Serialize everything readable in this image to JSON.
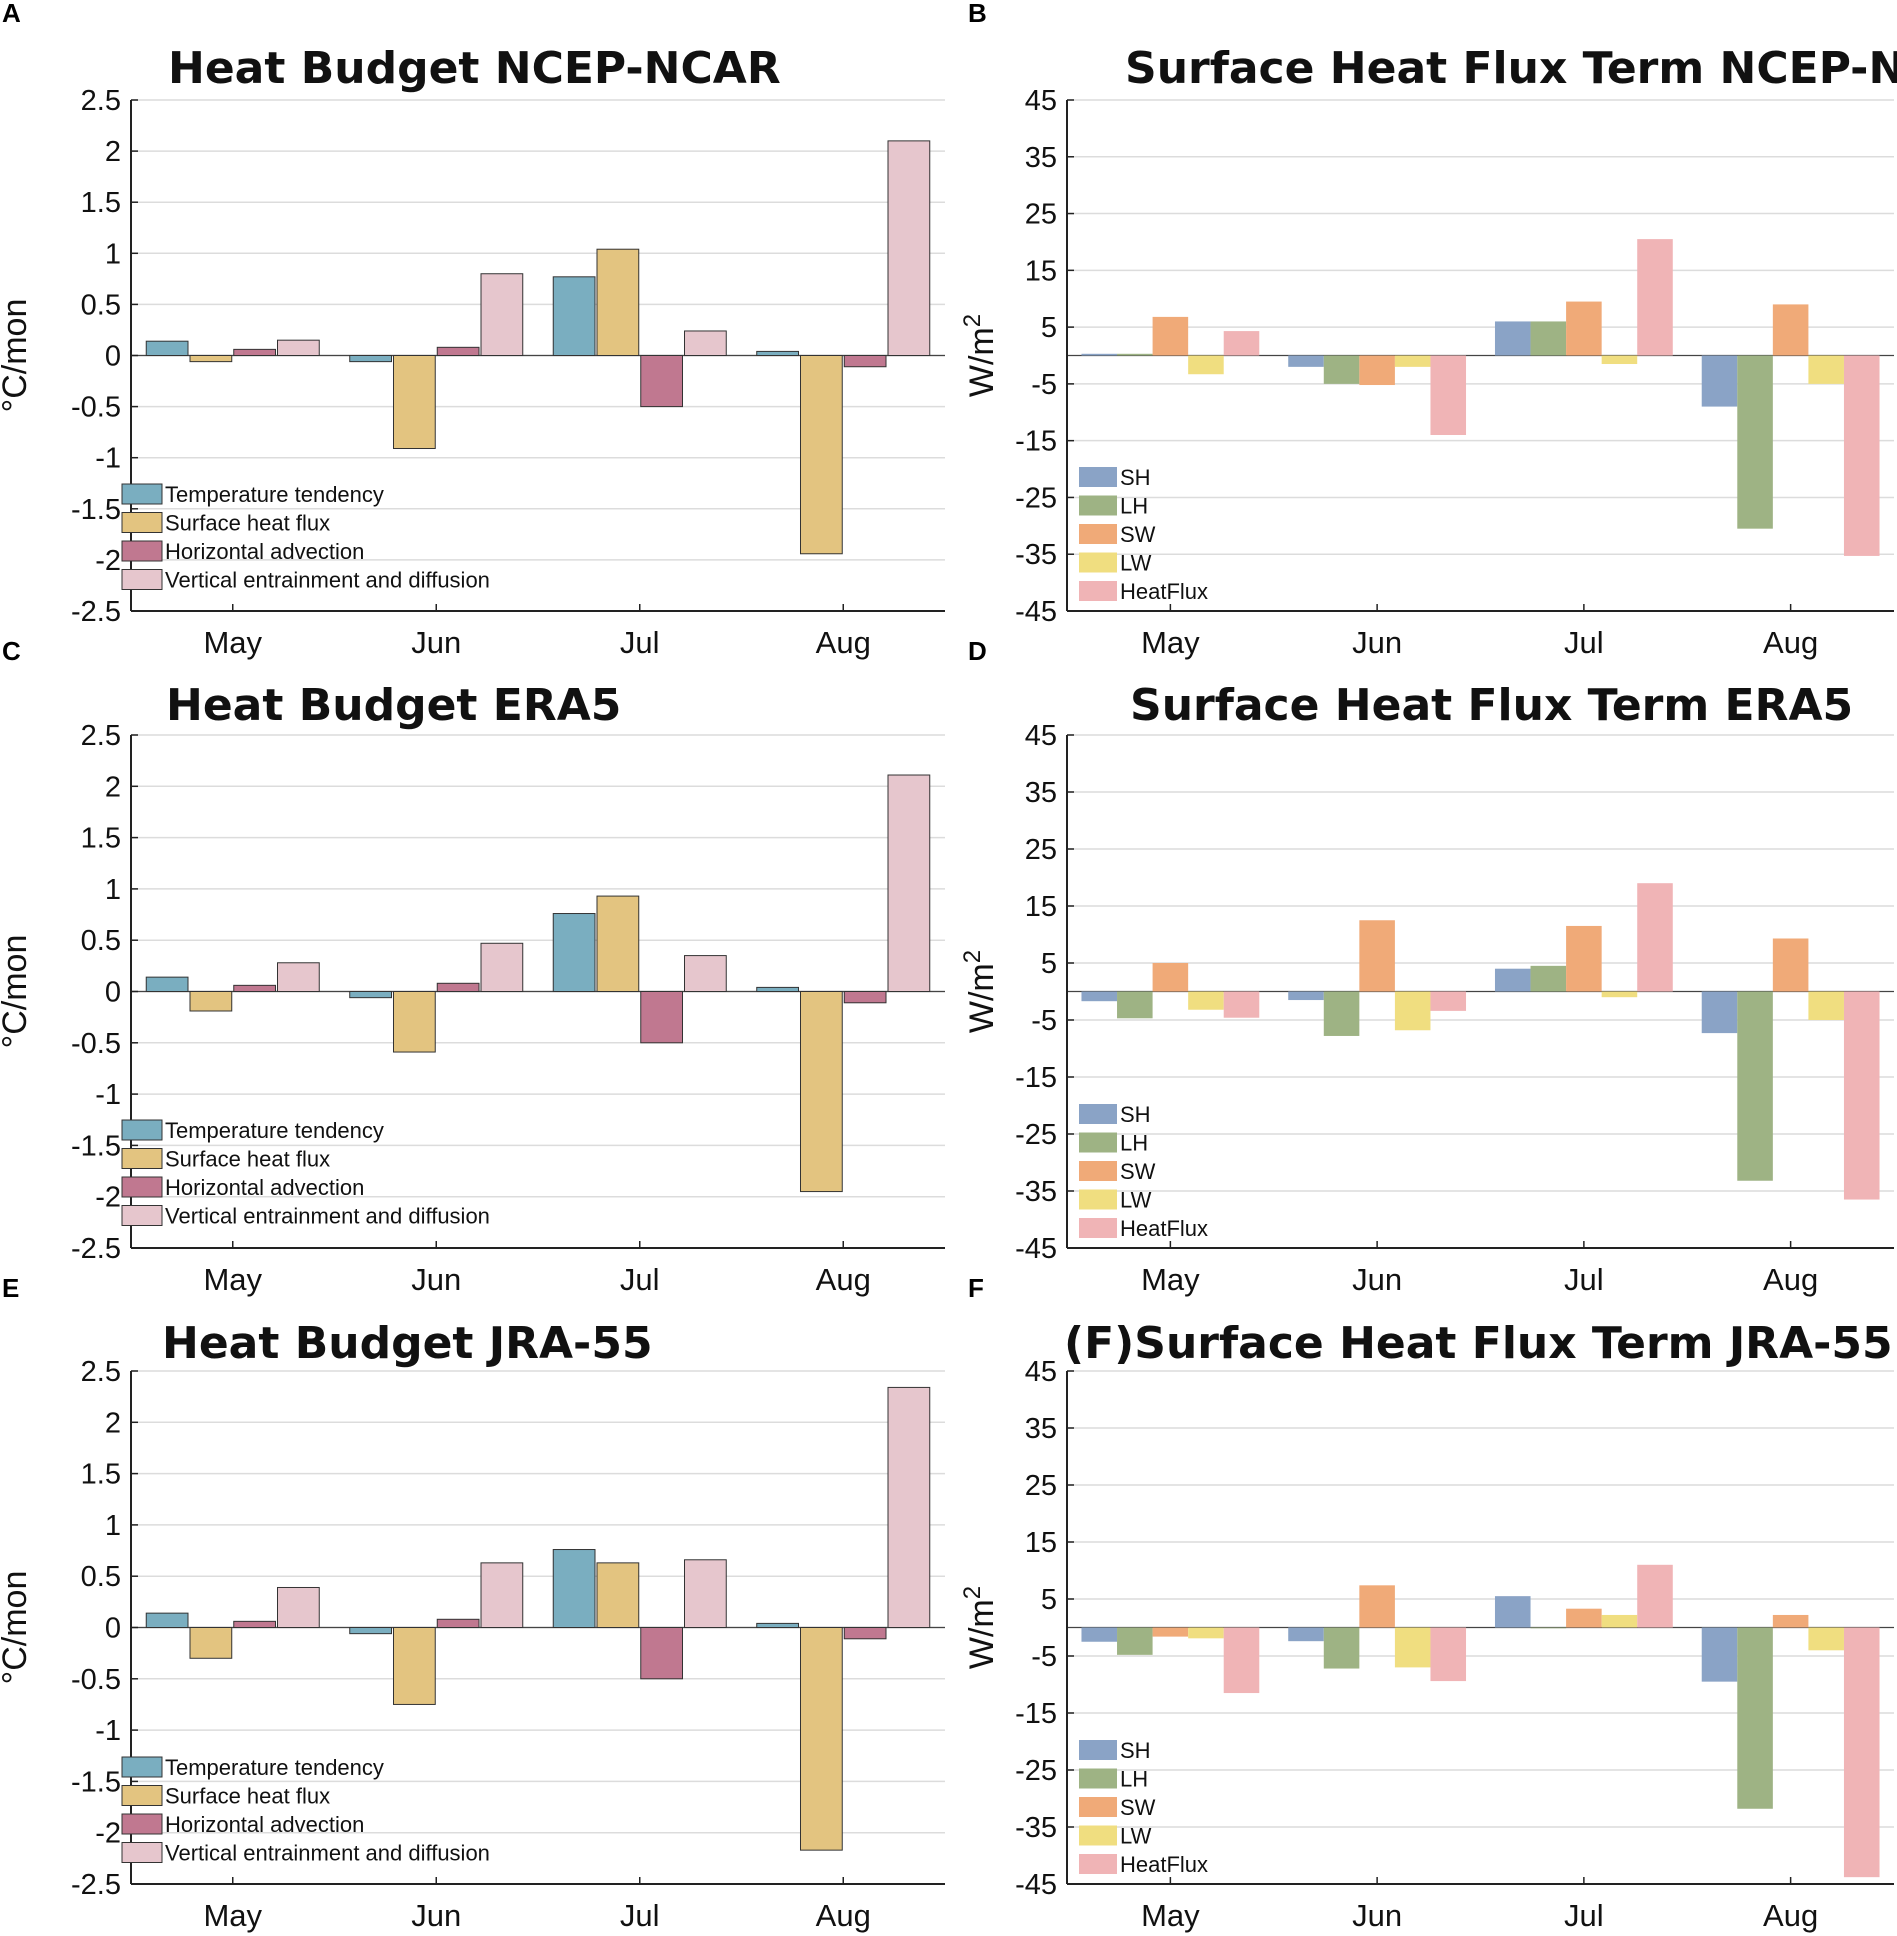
{
  "colors": {
    "temperature_tendency": "#7aaec0",
    "surface_heat_flux": "#e3c480",
    "horizontal_advection": "#c07890",
    "vertical_entrainment": "#e6c6cd",
    "SH": "#8aa3c6",
    "LH": "#9eb384",
    "SW": "#f0aa78",
    "LW": "#f0de80",
    "HeatFlux": "#f0b4b6",
    "grid": "#dcdcdc",
    "axis": "#222222"
  },
  "chart_data": [
    {
      "panel": "A",
      "type": "bar",
      "title": "Heat Budget NCEP-NCAR",
      "ylabel": "°C/mon",
      "xlabel": "",
      "ylim": [
        -2.5,
        2.5
      ],
      "yticks": [
        "2.5",
        "2",
        "1.5",
        "1",
        "0.5",
        "0",
        "-0.5",
        "-1",
        "-1.5",
        "-2",
        "-2.5"
      ],
      "ytick_values": [
        2.5,
        2,
        1.5,
        1,
        0.5,
        0,
        -0.5,
        -1,
        -1.5,
        -2,
        -2.5
      ],
      "categories": [
        "May",
        "Jun",
        "Jul",
        "Aug"
      ],
      "legend_position": "bottom-left",
      "series": [
        {
          "name": "Temperature tendency",
          "color_key": "temperature_tendency",
          "values": [
            0.14,
            -0.06,
            0.77,
            0.04
          ]
        },
        {
          "name": "Surface heat flux",
          "color_key": "surface_heat_flux",
          "values": [
            -0.06,
            -0.91,
            1.04,
            -1.94
          ]
        },
        {
          "name": "Horizontal advection",
          "color_key": "horizontal_advection",
          "values": [
            0.06,
            0.08,
            -0.5,
            -0.11
          ]
        },
        {
          "name": "Vertical entrainment and diffusion",
          "color_key": "vertical_entrainment",
          "values": [
            0.15,
            0.8,
            0.24,
            2.1
          ]
        }
      ]
    },
    {
      "panel": "B",
      "type": "bar",
      "title": "Surface Heat Flux Term NCEP-NCAR",
      "ylabel": "W/m",
      "ylabel_sup": "2",
      "xlabel": "",
      "ylim": [
        -45,
        45
      ],
      "yticks": [
        "45",
        "35",
        "25",
        "15",
        "5",
        "-5",
        "-15",
        "-25",
        "-35",
        "-45"
      ],
      "ytick_values": [
        45,
        35,
        25,
        15,
        5,
        -5,
        -15,
        -25,
        -35,
        -45
      ],
      "categories": [
        "May",
        "Jun",
        "Jul",
        "Aug"
      ],
      "legend_position": "bottom-left",
      "series": [
        {
          "name": "SH",
          "color_key": "SH",
          "values": [
            0.3,
            -2.0,
            6.0,
            -9.0
          ]
        },
        {
          "name": "LH",
          "color_key": "LH",
          "values": [
            0.3,
            -5.0,
            6.0,
            -30.5
          ]
        },
        {
          "name": "SW",
          "color_key": "SW",
          "values": [
            6.8,
            -5.2,
            9.5,
            9.0
          ]
        },
        {
          "name": "LW",
          "color_key": "LW",
          "values": [
            -3.3,
            -2.0,
            -1.5,
            -5.0
          ]
        },
        {
          "name": "HeatFlux",
          "color_key": "HeatFlux",
          "values": [
            4.3,
            -14.0,
            20.5,
            -35.3
          ]
        }
      ]
    },
    {
      "panel": "C",
      "type": "bar",
      "title": "Heat Budget ERA5",
      "ylabel": "°C/mon",
      "xlabel": "",
      "ylim": [
        -2.5,
        2.5
      ],
      "yticks": [
        "2.5",
        "2",
        "1.5",
        "1",
        "0.5",
        "0",
        "-0.5",
        "-1",
        "-1.5",
        "-2",
        "-2.5"
      ],
      "ytick_values": [
        2.5,
        2,
        1.5,
        1,
        0.5,
        0,
        -0.5,
        -1,
        -1.5,
        -2,
        -2.5
      ],
      "categories": [
        "May",
        "Jun",
        "Jul",
        "Aug"
      ],
      "legend_position": "bottom-left",
      "series": [
        {
          "name": "Temperature tendency",
          "color_key": "temperature_tendency",
          "values": [
            0.14,
            -0.06,
            0.76,
            0.04
          ]
        },
        {
          "name": "Surface heat flux",
          "color_key": "surface_heat_flux",
          "values": [
            -0.19,
            -0.59,
            0.93,
            -1.95
          ]
        },
        {
          "name": "Horizontal advection",
          "color_key": "horizontal_advection",
          "values": [
            0.06,
            0.08,
            -0.5,
            -0.11
          ]
        },
        {
          "name": "Vertical entrainment and diffusion",
          "color_key": "vertical_entrainment",
          "values": [
            0.28,
            0.47,
            0.35,
            2.11
          ]
        }
      ]
    },
    {
      "panel": "D",
      "type": "bar",
      "title": "Surface Heat Flux Term ERA5",
      "ylabel": "W/m",
      "ylabel_sup": "2",
      "xlabel": "",
      "ylim": [
        -45,
        45
      ],
      "yticks": [
        "45",
        "35",
        "25",
        "15",
        "5",
        "-5",
        "-15",
        "-25",
        "-35",
        "-45"
      ],
      "ytick_values": [
        45,
        35,
        25,
        15,
        5,
        -5,
        -15,
        -25,
        -35,
        -45
      ],
      "categories": [
        "May",
        "Jun",
        "Jul",
        "Aug"
      ],
      "legend_position": "bottom-left",
      "series": [
        {
          "name": "SH",
          "color_key": "SH",
          "values": [
            -1.7,
            -1.5,
            4.0,
            -7.3
          ]
        },
        {
          "name": "LH",
          "color_key": "LH",
          "values": [
            -4.7,
            -7.8,
            4.5,
            -33.2
          ]
        },
        {
          "name": "SW",
          "color_key": "SW",
          "values": [
            5.0,
            12.5,
            11.5,
            9.3
          ]
        },
        {
          "name": "LW",
          "color_key": "LW",
          "values": [
            -3.2,
            -6.8,
            -1.0,
            -5.0
          ]
        },
        {
          "name": "HeatFlux",
          "color_key": "HeatFlux",
          "values": [
            -4.6,
            -3.4,
            19.0,
            -36.5
          ]
        }
      ]
    },
    {
      "panel": "E",
      "type": "bar",
      "title": "Heat Budget JRA-55",
      "ylabel": "°C/mon",
      "xlabel": "",
      "ylim": [
        -2.5,
        2.5
      ],
      "yticks": [
        "2.5",
        "2",
        "1.5",
        "1",
        "0.5",
        "0",
        "-0.5",
        "-1",
        "-1.5",
        "-2",
        "-2.5"
      ],
      "ytick_values": [
        2.5,
        2,
        1.5,
        1,
        0.5,
        0,
        -0.5,
        -1,
        -1.5,
        -2,
        -2.5
      ],
      "categories": [
        "May",
        "Jun",
        "Jul",
        "Aug"
      ],
      "legend_position": "bottom-left",
      "series": [
        {
          "name": "Temperature tendency",
          "color_key": "temperature_tendency",
          "values": [
            0.14,
            -0.06,
            0.76,
            0.04
          ]
        },
        {
          "name": "Surface heat flux",
          "color_key": "surface_heat_flux",
          "values": [
            -0.3,
            -0.75,
            0.63,
            -2.17
          ]
        },
        {
          "name": "Horizontal advection",
          "color_key": "horizontal_advection",
          "values": [
            0.06,
            0.08,
            -0.5,
            -0.11
          ]
        },
        {
          "name": "Vertical entrainment and diffusion",
          "color_key": "vertical_entrainment",
          "values": [
            0.39,
            0.63,
            0.66,
            2.34
          ]
        }
      ]
    },
    {
      "panel": "F",
      "type": "bar",
      "title": "(F)Surface Heat Flux Term JRA-55",
      "ylabel": "W/m",
      "ylabel_sup": "2",
      "xlabel": "",
      "ylim": [
        -45,
        45
      ],
      "yticks": [
        "45",
        "35",
        "25",
        "15",
        "5",
        "-5",
        "-15",
        "-25",
        "-35",
        "-45"
      ],
      "ytick_values": [
        45,
        35,
        25,
        15,
        5,
        -5,
        -15,
        -25,
        -35,
        -45
      ],
      "categories": [
        "May",
        "Jun",
        "Jul",
        "Aug"
      ],
      "legend_position": "bottom-left",
      "series": [
        {
          "name": "SH",
          "color_key": "SH",
          "values": [
            -2.5,
            -2.4,
            5.5,
            -9.5
          ]
        },
        {
          "name": "LH",
          "color_key": "LH",
          "values": [
            -4.8,
            -7.2,
            0.0,
            -31.8
          ]
        },
        {
          "name": "SW",
          "color_key": "SW",
          "values": [
            -1.6,
            7.4,
            3.3,
            2.2
          ]
        },
        {
          "name": "LW",
          "color_key": "LW",
          "values": [
            -1.9,
            -7.0,
            2.2,
            -4.0
          ]
        },
        {
          "name": "HeatFlux",
          "color_key": "HeatFlux",
          "values": [
            -11.5,
            -9.4,
            11.0,
            -43.8
          ]
        }
      ]
    }
  ]
}
